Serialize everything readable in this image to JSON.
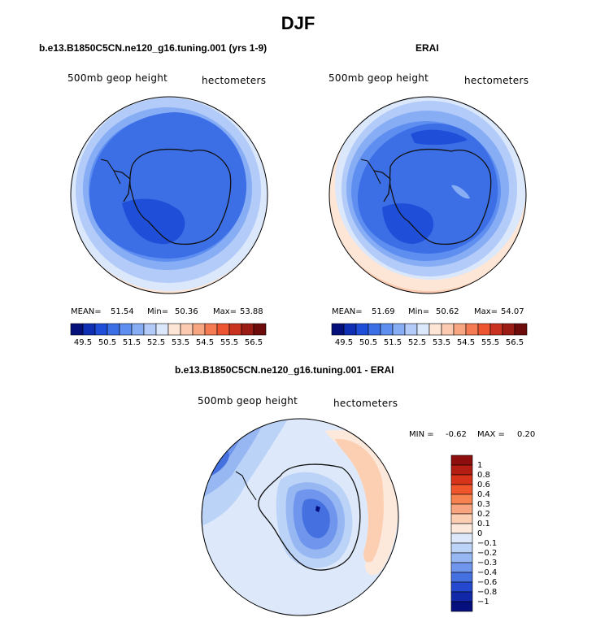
{
  "figure": {
    "title": "DJF"
  },
  "panels": {
    "model": {
      "title": "b.e13.B1850C5CN.ne120_g16.tuning.001 (yrs 1-9)",
      "left_label": "500mb geop height",
      "right_label": "hectometers",
      "mean_label": "MEAN=",
      "mean": "51.54",
      "min_label": "Min=",
      "min": "50.36",
      "max_label": "Max=",
      "max": "53.88"
    },
    "obs": {
      "title": "ERAI",
      "left_label": "500mb geop height",
      "right_label": "hectometers",
      "mean_label": "MEAN=",
      "mean": "51.69",
      "min_label": "Min=",
      "min": "50.62",
      "max_label": "Max=",
      "max": "54.07"
    },
    "diff": {
      "title": "b.e13.B1850C5CN.ne120_g16.tuning.001 - ERAI",
      "left_label": "500mb geop height",
      "right_label": "hectometers",
      "min_label": "MIN =",
      "min": "-0.62",
      "max_label": "MAX =",
      "max": "0.20"
    }
  },
  "chart_data": [
    {
      "type": "heatmap",
      "projection": "south polar stereographic",
      "title": "b.e13.B1850C5CN.ne120_g16.tuning.001 (yrs 1-9)",
      "variable": "500mb geop height",
      "units": "hectometers",
      "stats": {
        "mean": 51.54,
        "min": 50.36,
        "max": 53.88
      },
      "colorbar": {
        "levels": [
          49.5,
          50.5,
          51.5,
          52.5,
          53.5,
          54.5,
          55.5,
          56.5
        ],
        "level_labels": [
          "49.5",
          "50.5",
          "51.5",
          "52.5",
          "53.5",
          "54.5",
          "55.5",
          "56.5"
        ],
        "colors": [
          "#06107a",
          "#0f2fb4",
          "#1f4fd8",
          "#3c6fe6",
          "#5e8ef0",
          "#87adf5",
          "#b3cbf8",
          "#dbe7fb",
          "#fde6d6",
          "#fccab0",
          "#f8a581",
          "#f57c52",
          "#ec5530",
          "#c9321f",
          "#9a1c14",
          "#6e0c0c"
        ]
      }
    },
    {
      "type": "heatmap",
      "projection": "south polar stereographic",
      "title": "ERAI",
      "variable": "500mb geop height",
      "units": "hectometers",
      "stats": {
        "mean": 51.69,
        "min": 50.62,
        "max": 54.07
      },
      "colorbar": {
        "levels": [
          49.5,
          50.5,
          51.5,
          52.5,
          53.5,
          54.5,
          55.5,
          56.5
        ],
        "level_labels": [
          "49.5",
          "50.5",
          "51.5",
          "52.5",
          "53.5",
          "54.5",
          "55.5",
          "56.5"
        ],
        "colors": [
          "#06107a",
          "#0f2fb4",
          "#1f4fd8",
          "#3c6fe6",
          "#5e8ef0",
          "#87adf5",
          "#b3cbf8",
          "#dbe7fb",
          "#fde6d6",
          "#fccab0",
          "#f8a581",
          "#f57c52",
          "#ec5530",
          "#c9321f",
          "#9a1c14",
          "#6e0c0c"
        ]
      }
    },
    {
      "type": "heatmap",
      "projection": "south polar stereographic",
      "title": "b.e13.B1850C5CN.ne120_g16.tuning.001 - ERAI",
      "variable": "500mb geop height",
      "units": "hectometers",
      "stats": {
        "min": -0.62,
        "max": 0.2
      },
      "colorbar": {
        "orientation": "vertical",
        "levels": [
          1,
          0.8,
          0.6,
          0.4,
          0.3,
          0.2,
          0.1,
          0,
          -0.1,
          -0.2,
          -0.3,
          -0.4,
          -0.6,
          -0.8,
          -1
        ],
        "level_labels": [
          "1",
          "0.8",
          "0.6",
          "0.4",
          "0.3",
          "0.2",
          "0.1",
          "0",
          "−0.1",
          "−0.2",
          "−0.3",
          "−0.4",
          "−0.6",
          "−0.8",
          "−1"
        ],
        "colors": [
          "#8e0e0e",
          "#b31d12",
          "#d8341b",
          "#f0562c",
          "#f6824f",
          "#f8a57f",
          "#fccfb3",
          "#fde9dc",
          "#dde9fb",
          "#bcd3f8",
          "#97b7f3",
          "#6f95ec",
          "#4470e0",
          "#2449cf",
          "#1128a8",
          "#050f7e"
        ]
      }
    }
  ]
}
